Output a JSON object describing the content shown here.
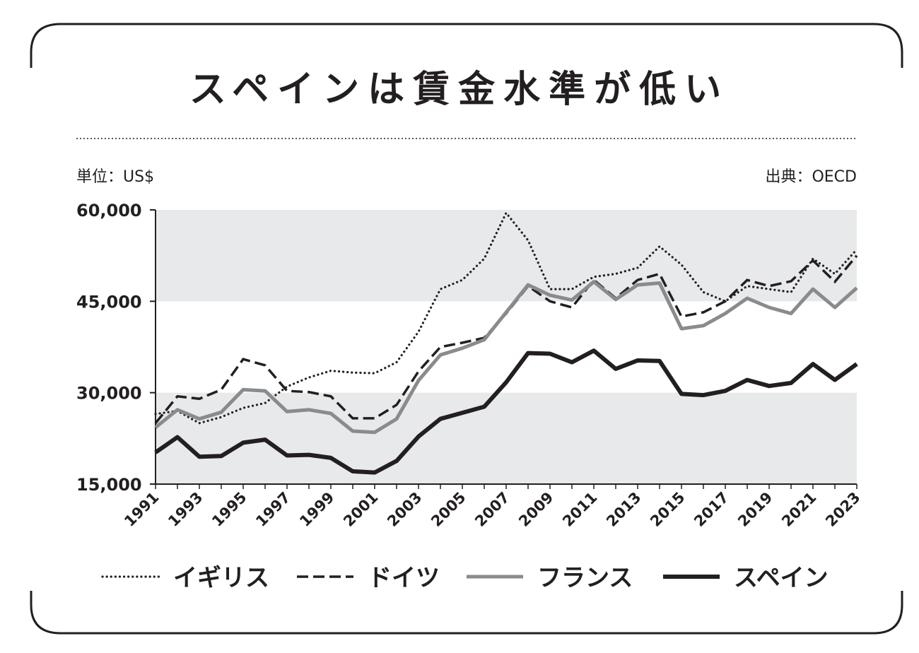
{
  "title": "スペインは賃金水準が低い",
  "unit_label": "単位：US$",
  "source_label": "出典：OECD",
  "chart_data": {
    "type": "line",
    "title": "スペインは賃金水準が低い",
    "ylim": [
      15000,
      60000
    ],
    "yticks": [
      15000,
      30000,
      45000,
      60000
    ],
    "ytick_labels": [
      "15,000",
      "30,000",
      "45,000",
      "60,000"
    ],
    "xtick_labels": [
      "1991",
      "1993",
      "1995",
      "1997",
      "1999",
      "2001",
      "2003",
      "2005",
      "2007",
      "2009",
      "2011",
      "2013",
      "2015",
      "2017",
      "2019",
      "2021",
      "2023"
    ],
    "x": [
      1991,
      1992,
      1993,
      1994,
      1995,
      1996,
      1997,
      1998,
      1999,
      2000,
      2001,
      2002,
      2003,
      2004,
      2005,
      2006,
      2007,
      2008,
      2009,
      2010,
      2011,
      2012,
      2013,
      2014,
      2015,
      2016,
      2017,
      2018,
      2019,
      2020,
      2021,
      2022,
      2023
    ],
    "legend_position": "bottom",
    "series": [
      {
        "name": "イギリス",
        "style": "dotted",
        "color": "#231f20",
        "values": [
          26500,
          27000,
          25000,
          26000,
          27500,
          28300,
          31000,
          32500,
          33600,
          33300,
          33200,
          35000,
          40000,
          47000,
          48500,
          52000,
          59500,
          55000,
          47000,
          47000,
          49000,
          49500,
          50500,
          54000,
          51000,
          46500,
          45000,
          47500,
          47000,
          46500,
          52000,
          49500,
          53500
        ]
      },
      {
        "name": "ドイツ",
        "style": "dashed",
        "color": "#231f20",
        "values": [
          25000,
          29400,
          29000,
          30500,
          35500,
          34500,
          30300,
          30100,
          29400,
          25800,
          25800,
          28000,
          33500,
          37500,
          38200,
          39000,
          43000,
          47500,
          45000,
          44000,
          48500,
          45500,
          48500,
          49500,
          42500,
          43200,
          45000,
          48500,
          47500,
          48300,
          51700,
          48200,
          52500
        ]
      },
      {
        "name": "フランス",
        "style": "solid",
        "color": "#8a8b8c",
        "values": [
          24300,
          27200,
          25700,
          26800,
          30500,
          30300,
          26900,
          27200,
          26600,
          23700,
          23500,
          25700,
          32000,
          36200,
          37300,
          38700,
          43200,
          47700,
          46000,
          45200,
          48200,
          45300,
          47700,
          48000,
          40500,
          41000,
          43000,
          45500,
          44000,
          43000,
          47000,
          44000,
          47200
        ]
      },
      {
        "name": "スペイン",
        "style": "solid",
        "color": "#231f20",
        "values": [
          20200,
          22700,
          19500,
          19600,
          21800,
          22300,
          19700,
          19800,
          19300,
          17100,
          16900,
          18800,
          22800,
          25700,
          26700,
          27700,
          31700,
          36500,
          36400,
          35000,
          36900,
          33900,
          35300,
          35200,
          29800,
          29600,
          30300,
          32100,
          31100,
          31600,
          34700,
          32100,
          34700
        ]
      }
    ]
  }
}
